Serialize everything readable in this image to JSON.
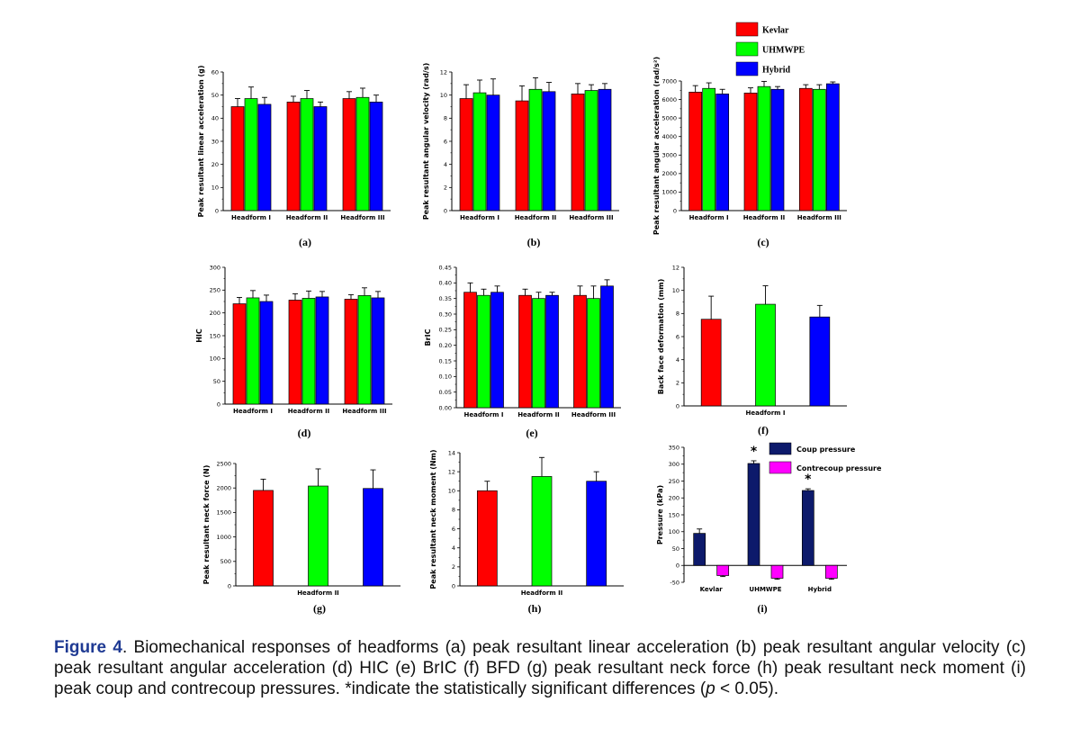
{
  "colors": {
    "Kevlar": "#ff0000",
    "UHMWPE": "#00ff00",
    "Hybrid": "#0000ff",
    "Coup pressure": "#0d1a6b",
    "Contrecoup pressure": "#ff00ff"
  },
  "legend_main": [
    "Kevlar",
    "UHMWPE",
    "Hybrid"
  ],
  "caption": {
    "fig": "Figure 4",
    "text1": ". Biomechanical responses of headforms (a) peak resultant linear acceleration (b) peak resultant angular velocity (c) peak resultant angular acceleration (d) HIC (e) BrIC (f) BFD (g) peak resultant neck force (h) peak resultant neck moment (i) peak coup and contrecoup pressures. *indicate the statistically significant differences (",
    "p": "p",
    "text2": " < 0.05)."
  },
  "chart_data": [
    {
      "id": "a",
      "label": "(a)",
      "type": "bar",
      "ylabel": "Peak resultant linear acceleration (g)",
      "ylim": [
        0,
        60
      ],
      "yticks": [
        0,
        10,
        20,
        30,
        40,
        50,
        60
      ],
      "tick_decimals": 0,
      "categories": [
        "Headform I",
        "Headform II",
        "Headform III"
      ],
      "series": [
        {
          "name": "Kevlar",
          "values": [
            45,
            47,
            48.5
          ],
          "errors": [
            3.5,
            2.5,
            3
          ]
        },
        {
          "name": "UHMWPE",
          "values": [
            48.5,
            48.5,
            49
          ],
          "errors": [
            5,
            3.5,
            4
          ]
        },
        {
          "name": "Hybrid",
          "values": [
            46,
            45,
            47
          ],
          "errors": [
            3,
            2,
            3
          ]
        }
      ]
    },
    {
      "id": "b",
      "label": "(b)",
      "type": "bar",
      "ylabel": "Peak resultant angular velocity (rad/s)",
      "ylim": [
        0,
        12
      ],
      "yticks": [
        0,
        2,
        4,
        6,
        8,
        10,
        12
      ],
      "tick_decimals": 0,
      "categories": [
        "Headform I",
        "Headform II",
        "Headform III"
      ],
      "series": [
        {
          "name": "Kevlar",
          "values": [
            9.7,
            9.5,
            10.1
          ],
          "errors": [
            1.2,
            1.3,
            0.9
          ]
        },
        {
          "name": "UHMWPE",
          "values": [
            10.2,
            10.5,
            10.4
          ],
          "errors": [
            1.1,
            1.0,
            0.5
          ]
        },
        {
          "name": "Hybrid",
          "values": [
            10.0,
            10.3,
            10.5
          ],
          "errors": [
            1.4,
            0.8,
            0.5
          ]
        }
      ]
    },
    {
      "id": "c",
      "label": "(c)",
      "type": "bar",
      "ylabel": "Peak resultant angular acceleration (rad/s²)",
      "ylim": [
        0,
        7000
      ],
      "yticks": [
        0,
        1000,
        2000,
        3000,
        4000,
        5000,
        6000,
        7000
      ],
      "tick_decimals": 0,
      "categories": [
        "Headform I",
        "Headform II",
        "Headform III"
      ],
      "series": [
        {
          "name": "Kevlar",
          "values": [
            6400,
            6350,
            6600
          ],
          "errors": [
            350,
            280,
            200
          ]
        },
        {
          "name": "UHMWPE",
          "values": [
            6600,
            6700,
            6550
          ],
          "errors": [
            300,
            280,
            250
          ]
        },
        {
          "name": "Hybrid",
          "values": [
            6300,
            6550,
            6850
          ],
          "errors": [
            250,
            150,
            100
          ]
        }
      ]
    },
    {
      "id": "d",
      "label": "(d)",
      "type": "bar",
      "ylabel": "HIC",
      "ylim": [
        0,
        300
      ],
      "yticks": [
        0,
        50,
        100,
        150,
        200,
        250,
        300
      ],
      "tick_decimals": 0,
      "categories": [
        "Headform I",
        "Headform II",
        "Headform III"
      ],
      "series": [
        {
          "name": "Kevlar",
          "values": [
            220,
            228,
            230
          ],
          "errors": [
            14,
            14,
            10
          ]
        },
        {
          "name": "UHMWPE",
          "values": [
            233,
            232,
            238
          ],
          "errors": [
            16,
            16,
            17
          ]
        },
        {
          "name": "Hybrid",
          "values": [
            225,
            235,
            233
          ],
          "errors": [
            14,
            12,
            14
          ]
        }
      ]
    },
    {
      "id": "e",
      "label": "(e)",
      "type": "bar",
      "ylabel": "BrIC",
      "ylim": [
        0,
        0.45
      ],
      "yticks": [
        0,
        0.05,
        0.1,
        0.15,
        0.2,
        0.25,
        0.3,
        0.35,
        0.4,
        0.45
      ],
      "tick_decimals": 2,
      "categories": [
        "Headform I",
        "Headform II",
        "Headform III"
      ],
      "series": [
        {
          "name": "Kevlar",
          "values": [
            0.37,
            0.36,
            0.36
          ],
          "errors": [
            0.03,
            0.02,
            0.03
          ]
        },
        {
          "name": "UHMWPE",
          "values": [
            0.36,
            0.35,
            0.35
          ],
          "errors": [
            0.02,
            0.02,
            0.04
          ]
        },
        {
          "name": "Hybrid",
          "values": [
            0.37,
            0.36,
            0.39
          ],
          "errors": [
            0.02,
            0.01,
            0.02
          ]
        }
      ]
    },
    {
      "id": "f",
      "label": "(f)",
      "type": "bar",
      "ylabel": "Back face deformation (mm)",
      "ylim": [
        0,
        12
      ],
      "yticks": [
        0,
        2,
        4,
        6,
        8,
        10,
        12
      ],
      "tick_decimals": 0,
      "categories": [
        "Headform I"
      ],
      "series": [
        {
          "name": "Kevlar",
          "values": [
            7.5
          ],
          "errors": [
            2.0
          ]
        },
        {
          "name": "UHMWPE",
          "values": [
            8.8
          ],
          "errors": [
            1.6
          ]
        },
        {
          "name": "Hybrid",
          "values": [
            7.7
          ],
          "errors": [
            1.0
          ]
        }
      ]
    },
    {
      "id": "g",
      "label": "(g)",
      "type": "bar",
      "ylabel": "Peak resultant neck force (N)",
      "ylim": [
        0,
        2500
      ],
      "yticks": [
        0,
        500,
        1000,
        1500,
        2000,
        2500
      ],
      "tick_decimals": 0,
      "categories": [
        "Headform II"
      ],
      "series": [
        {
          "name": "Kevlar",
          "values": [
            1950
          ],
          "errors": [
            230
          ]
        },
        {
          "name": "UHMWPE",
          "values": [
            2040
          ],
          "errors": [
            350
          ]
        },
        {
          "name": "Hybrid",
          "values": [
            1990
          ],
          "errors": [
            380
          ]
        }
      ]
    },
    {
      "id": "h",
      "label": "(h)",
      "type": "bar",
      "ylabel": "Peak resultant neck moment (Nm)",
      "ylim": [
        0,
        14
      ],
      "yticks": [
        0,
        2,
        4,
        6,
        8,
        10,
        12,
        14
      ],
      "tick_decimals": 0,
      "categories": [
        "Headform II"
      ],
      "series": [
        {
          "name": "Kevlar",
          "values": [
            10.0
          ],
          "errors": [
            1.0
          ]
        },
        {
          "name": "UHMWPE",
          "values": [
            11.5
          ],
          "errors": [
            2.0
          ]
        },
        {
          "name": "Hybrid",
          "values": [
            11.0
          ],
          "errors": [
            1.0
          ]
        }
      ]
    },
    {
      "id": "i",
      "label": "(i)",
      "type": "bar",
      "ylabel": "Pressure (kPa)",
      "ylim": [
        -50,
        350
      ],
      "yticks": [
        -50,
        0,
        50,
        100,
        150,
        200,
        250,
        300,
        350
      ],
      "tick_decimals": 0,
      "categories": [
        "Kevlar",
        "UHMWPE",
        "Hybrid"
      ],
      "significant": [
        false,
        true,
        true
      ],
      "series": [
        {
          "name": "Coup pressure",
          "values": [
            95,
            302,
            222
          ],
          "errors": [
            13,
            8,
            5
          ]
        },
        {
          "name": "Contrecoup pressure",
          "values": [
            -30,
            -38,
            -38
          ],
          "errors": [
            3,
            3,
            3
          ]
        }
      ]
    }
  ]
}
